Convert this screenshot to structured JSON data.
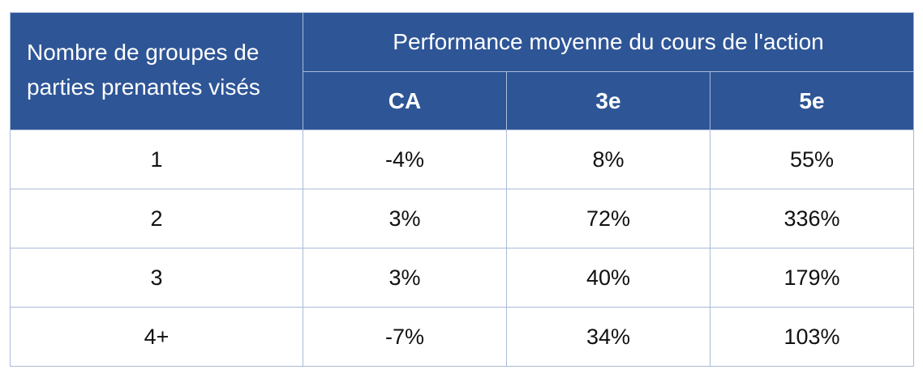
{
  "table": {
    "row_header": "Nombre de groupes de parties prenantes visés",
    "group_header": "Performance moyenne du cours de l'action",
    "sub_headers": [
      "CA",
      "3e",
      "5e"
    ],
    "rows": [
      {
        "label": "1",
        "values": [
          "-4%",
          "8%",
          "55%"
        ]
      },
      {
        "label": "2",
        "values": [
          "3%",
          "72%",
          "336%"
        ]
      },
      {
        "label": "3",
        "values": [
          "3%",
          "40%",
          "179%"
        ]
      },
      {
        "label": "4+",
        "values": [
          "-7%",
          "34%",
          "103%"
        ]
      }
    ]
  },
  "colors": {
    "header_bg": "#2e5596",
    "header_text": "#ffffff",
    "border": "#a9bcd8",
    "body_text": "#111111"
  },
  "chart_data": {
    "type": "table",
    "columns": [
      "Nombre de groupes de parties prenantes visés",
      "CA",
      "3e",
      "5e"
    ],
    "rows": [
      [
        "1",
        "-4%",
        "8%",
        "55%"
      ],
      [
        "2",
        "3%",
        "72%",
        "336%"
      ],
      [
        "3",
        "3%",
        "40%",
        "179%"
      ],
      [
        "4+",
        "-7%",
        "34%",
        "103%"
      ]
    ]
  }
}
